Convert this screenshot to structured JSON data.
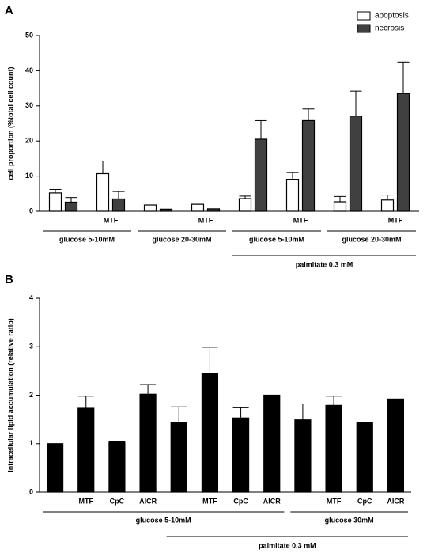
{
  "chart_data": [
    {
      "type": "bar",
      "panel": "A",
      "ylabel": "cell proportion (%total cell count)",
      "categories": [
        null,
        "MTF",
        null,
        "MTF",
        null,
        "MTF",
        null,
        "MTF"
      ],
      "series": [
        {
          "name": "apoptosis",
          "color": "#ffffff",
          "values": [
            5.2,
            10.7,
            1.8,
            2.0,
            3.6,
            9.1,
            2.7,
            3.2
          ],
          "errors": [
            1.0,
            3.6,
            null,
            null,
            0.7,
            1.9,
            1.5,
            1.4
          ]
        },
        {
          "name": "necrosis",
          "color": "#404040",
          "values": [
            2.6,
            3.5,
            0.6,
            0.7,
            20.5,
            25.8,
            27.1,
            33.5
          ],
          "errors": [
            1.3,
            2.1,
            null,
            null,
            5.3,
            3.3,
            7.1,
            9.0
          ]
        }
      ],
      "ylim": [
        0,
        50
      ],
      "yticks": [
        0,
        10,
        20,
        30,
        40,
        50
      ],
      "group_labels": [
        "glucose 5-10mM",
        "glucose 20-30mM",
        "glucose 5-10mM",
        "glucose 20-30mM"
      ],
      "outer_label": "palmitate 0.3 mM",
      "legend": "top-right"
    },
    {
      "type": "bar",
      "panel": "B",
      "ylabel": "Intracellular lipid accumulation  (relative ratio)",
      "categories": [
        null,
        "MTF",
        "CpC",
        "AICR",
        null,
        "MTF",
        "CpC",
        "AICR",
        null,
        "MTF",
        "CpC",
        "AICR"
      ],
      "series": [
        {
          "color": "#000000",
          "values": [
            1.0,
            1.73,
            1.03,
            2.02,
            1.44,
            2.44,
            1.53,
            2.0,
            1.49,
            1.79,
            1.43,
            1.92
          ],
          "errors": [
            null,
            0.25,
            0.01,
            0.2,
            0.32,
            0.55,
            0.21,
            null,
            0.33,
            0.19,
            null,
            null
          ]
        }
      ],
      "ylim": [
        0,
        4
      ],
      "yticks": [
        0,
        1,
        2,
        3,
        4
      ],
      "group_labels": [
        "glucose 5-10mM",
        "glucose 30mM"
      ],
      "outer_label": "palmitate 0.3 mM"
    }
  ]
}
